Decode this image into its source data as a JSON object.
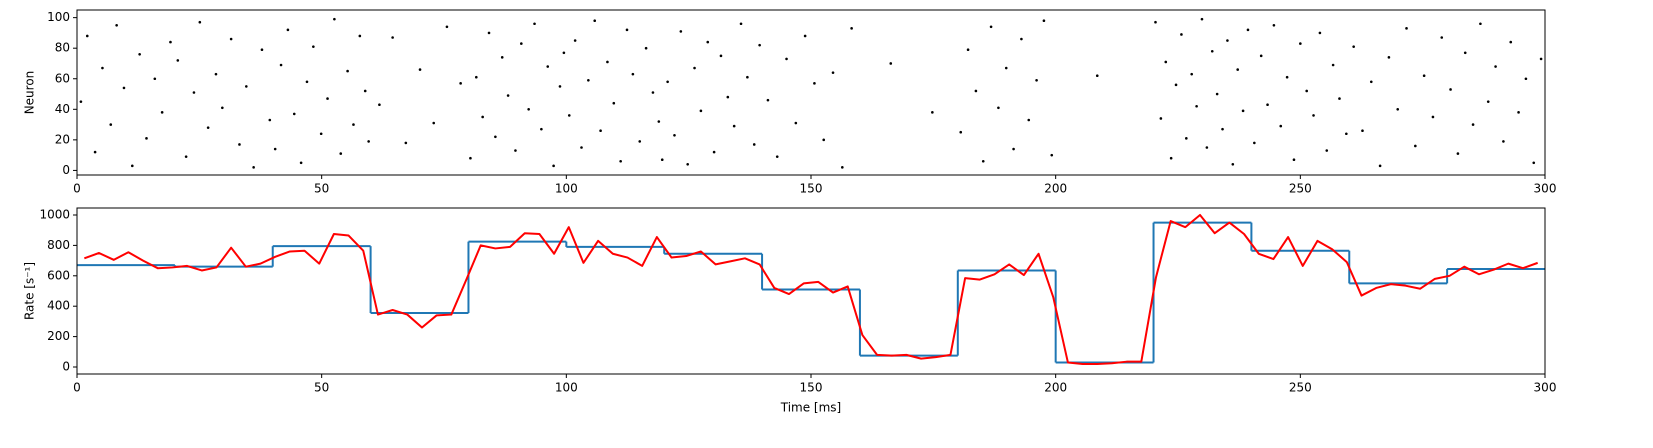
{
  "chart_data": [
    {
      "type": "scatter",
      "y_label": "Neuron",
      "xlim": [
        0,
        300
      ],
      "ylim": [
        -3,
        105
      ],
      "xticks": [
        0,
        50,
        100,
        150,
        200,
        250,
        300
      ],
      "yticks": [
        0,
        20,
        40,
        60,
        80,
        100
      ],
      "color": "#000000",
      "x": [
        0.8,
        2.1,
        3.7,
        5.2,
        6.9,
        8.1,
        9.6,
        11.3,
        12.8,
        14.2,
        15.9,
        17.4,
        19.1,
        20.6,
        22.3,
        23.9,
        25.1,
        26.8,
        28.4,
        29.7,
        31.5,
        33.2,
        34.6,
        36.1,
        37.8,
        39.4,
        40.5,
        41.7,
        43.1,
        44.4,
        45.8,
        47.0,
        48.3,
        49.9,
        51.2,
        52.6,
        53.9,
        55.3,
        56.5,
        57.8,
        58.9,
        59.6,
        61.8,
        64.5,
        67.2,
        70.1,
        72.9,
        75.6,
        78.4,
        80.4,
        81.6,
        82.9,
        84.2,
        85.5,
        86.9,
        88.1,
        89.6,
        90.8,
        92.3,
        93.5,
        94.9,
        96.2,
        97.4,
        98.7,
        99.5,
        100.6,
        101.8,
        103.1,
        104.5,
        105.8,
        107.0,
        108.4,
        109.7,
        111.1,
        112.4,
        113.6,
        115.0,
        116.3,
        117.7,
        118.9,
        119.6,
        120.7,
        122.1,
        123.4,
        124.8,
        126.2,
        127.5,
        128.9,
        130.2,
        131.6,
        133.0,
        134.3,
        135.7,
        137.0,
        138.4,
        139.5,
        141.2,
        143.1,
        145.0,
        146.9,
        148.8,
        150.7,
        152.6,
        154.5,
        156.4,
        158.3,
        166.3,
        174.8,
        180.6,
        182.1,
        183.7,
        185.2,
        186.8,
        188.3,
        189.9,
        191.4,
        193.0,
        194.5,
        196.1,
        197.6,
        199.2,
        208.5,
        220.4,
        221.5,
        222.5,
        223.6,
        224.6,
        225.7,
        226.7,
        227.8,
        228.8,
        229.9,
        230.9,
        232.0,
        233.0,
        234.1,
        235.1,
        236.2,
        237.2,
        238.3,
        239.3,
        240.6,
        242.0,
        243.3,
        244.6,
        246.0,
        247.3,
        248.7,
        250.0,
        251.3,
        252.7,
        254.0,
        255.4,
        256.7,
        258.0,
        259.4,
        260.9,
        262.7,
        264.5,
        266.3,
        268.1,
        269.9,
        271.7,
        273.5,
        275.3,
        277.1,
        278.9,
        280.7,
        282.2,
        283.7,
        285.3,
        286.8,
        288.4,
        289.9,
        291.5,
        293.0,
        294.6,
        296.1,
        297.7,
        299.2
      ],
      "values": [
        45,
        88,
        12,
        67,
        30,
        95,
        54,
        3,
        76,
        21,
        60,
        38,
        84,
        72,
        9,
        51,
        97,
        28,
        63,
        41,
        86,
        17,
        55,
        2,
        79,
        33,
        14,
        69,
        92,
        37,
        5,
        58,
        81,
        24,
        47,
        99,
        11,
        65,
        30,
        88,
        52,
        19,
        43,
        87,
        18,
        66,
        31,
        94,
        57,
        8,
        61,
        35,
        90,
        22,
        74,
        49,
        13,
        83,
        40,
        96,
        27,
        68,
        3,
        55,
        77,
        36,
        85,
        15,
        59,
        98,
        26,
        71,
        44,
        6,
        92,
        63,
        19,
        80,
        51,
        32,
        7,
        58,
        23,
        91,
        4,
        67,
        39,
        84,
        12,
        75,
        48,
        29,
        96,
        61,
        17,
        82,
        46,
        9,
        73,
        31,
        88,
        57,
        20,
        64,
        2,
        93,
        70,
        38,
        25,
        79,
        52,
        6,
        94,
        41,
        67,
        14,
        86,
        33,
        59,
        98,
        10,
        62,
        97,
        34,
        71,
        8,
        56,
        89,
        21,
        63,
        42,
        99,
        15,
        78,
        50,
        27,
        85,
        4,
        66,
        39,
        92,
        18,
        75,
        43,
        95,
        29,
        61,
        7,
        83,
        52,
        36,
        90,
        13,
        69,
        47,
        24,
        81,
        26,
        58,
        3,
        74,
        40,
        93,
        16,
        62,
        35,
        87,
        53,
        11,
        77,
        30,
        96,
        45,
        68,
        19,
        84,
        38,
        60,
        5,
        73
      ]
    },
    {
      "type": "line",
      "y_label": "Rate [s⁻¹]",
      "x_label": "Time [ms]",
      "xlim": [
        0,
        300
      ],
      "ylim": [
        -46,
        1046
      ],
      "xticks": [
        0,
        50,
        100,
        150,
        200,
        250,
        300
      ],
      "yticks": [
        0,
        200,
        400,
        600,
        800,
        1000
      ],
      "series": [
        {
          "color": "#1f77b4",
          "bins": [
            0,
            20,
            40,
            60,
            80,
            100,
            120,
            140,
            160,
            180,
            200,
            220,
            240,
            260,
            280,
            300
          ],
          "values": [
            670,
            660,
            795,
            355,
            825,
            790,
            745,
            510,
            75,
            635,
            30,
            950,
            765,
            550,
            645
          ]
        },
        {
          "color": "#ff0000",
          "x": [
            1.5,
            4.5,
            7.5,
            10.5,
            13.5,
            16.5,
            19.5,
            22.5,
            25.5,
            28.5,
            31.5,
            34.5,
            37.5,
            40.5,
            43.5,
            46.5,
            49.5,
            52.5,
            55.5,
            58.5,
            61.5,
            64.5,
            67.5,
            70.5,
            73.5,
            76.5,
            79.5,
            82.5,
            85.5,
            88.5,
            91.5,
            94.5,
            97.5,
            100.5,
            103.5,
            106.5,
            109.5,
            112.5,
            115.5,
            118.5,
            121.5,
            124.5,
            127.5,
            130.5,
            133.5,
            136.5,
            139.5,
            142.5,
            145.5,
            148.5,
            151.5,
            154.5,
            157.5,
            160.5,
            163.5,
            166.5,
            169.5,
            172.5,
            175.5,
            178.5,
            181.5,
            184.5,
            187.5,
            190.5,
            193.5,
            196.5,
            199.5,
            202.5,
            205.5,
            208.5,
            211.5,
            214.5,
            217.5,
            220.5,
            223.5,
            226.5,
            229.5,
            232.5,
            235.5,
            238.5,
            241.5,
            244.5,
            247.5,
            250.5,
            253.5,
            256.5,
            259.5,
            262.5,
            265.5,
            268.5,
            271.5,
            274.5,
            277.5,
            280.5,
            283.5,
            286.5,
            289.5,
            292.5,
            295.5,
            298.5
          ],
          "values": [
            715,
            750,
            705,
            755,
            700,
            650,
            655,
            665,
            635,
            655,
            785,
            660,
            680,
            725,
            760,
            765,
            680,
            875,
            865,
            765,
            345,
            375,
            345,
            260,
            340,
            345,
            570,
            800,
            780,
            790,
            880,
            875,
            745,
            920,
            685,
            830,
            745,
            720,
            665,
            855,
            720,
            730,
            760,
            675,
            695,
            715,
            675,
            520,
            480,
            550,
            560,
            490,
            530,
            210,
            80,
            75,
            80,
            55,
            65,
            80,
            585,
            575,
            610,
            675,
            605,
            745,
            460,
            30,
            20,
            20,
            25,
            35,
            35,
            590,
            960,
            920,
            1000,
            880,
            950,
            875,
            745,
            710,
            855,
            665,
            830,
            775,
            690,
            470,
            520,
            545,
            535,
            515,
            580,
            600,
            660,
            610,
            640,
            680,
            650,
            685
          ]
        }
      ]
    }
  ]
}
